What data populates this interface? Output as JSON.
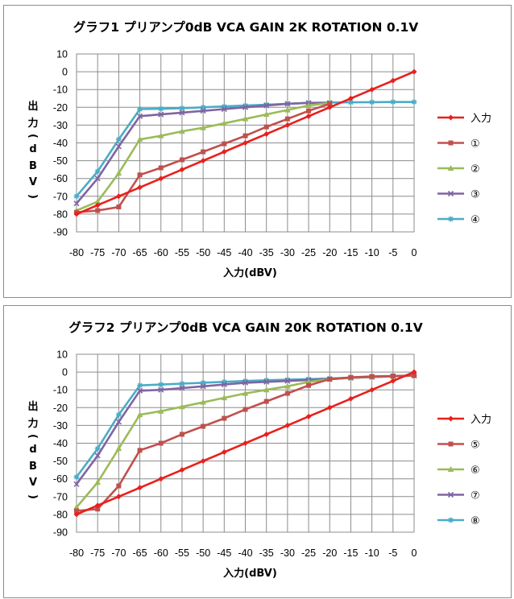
{
  "chart_data": [
    {
      "type": "line",
      "title": "グラフ1 プリアンプ0dB VCA GAIN 2K ROTATION 0.1V",
      "xlabel": "入力(dBV)",
      "ylabel": [
        "出",
        "力",
        "(",
        "d",
        "B",
        "V",
        ")"
      ],
      "categories": [
        "-80",
        "-75",
        "-70",
        "-65",
        "-60",
        "-55",
        "-50",
        "-45",
        "-40",
        "-35",
        "-30",
        "-25",
        "-20",
        "-15",
        "-10",
        "-5",
        "0"
      ],
      "ylim": [
        -90,
        10
      ],
      "yticks": [
        "10",
        "0",
        "-10",
        "-20",
        "-30",
        "-40",
        "-50",
        "-60",
        "-70",
        "-80",
        "-90"
      ],
      "grid": true,
      "legend_position": "right",
      "series": [
        {
          "name": "入力",
          "color": "#e8201d",
          "marker": "diamond",
          "values": [
            -80,
            -75,
            -70,
            -65,
            -60,
            -55,
            -50,
            -45,
            -40,
            -35,
            -30,
            -25,
            -20,
            -15,
            -10,
            -5,
            0
          ]
        },
        {
          "name": "①",
          "color": "#c0504d",
          "marker": "square",
          "values": [
            -79,
            -78,
            -76,
            -58,
            -54,
            -49.5,
            -45,
            -40.5,
            -36,
            -31,
            -26.5,
            -22,
            -18,
            null,
            null,
            null,
            null
          ]
        },
        {
          "name": "②",
          "color": "#9bbb59",
          "marker": "triangle",
          "values": [
            -78,
            -73,
            -57,
            -38,
            -36,
            -33.5,
            -31.5,
            -29,
            -26.5,
            -24,
            -21.5,
            -19,
            -17.5,
            null,
            null,
            null,
            null
          ]
        },
        {
          "name": "③",
          "color": "#8064a2",
          "marker": "cross",
          "values": [
            -74,
            -60,
            -42,
            -25,
            -24,
            -23,
            -22,
            -21,
            -20,
            -19,
            -18,
            -17.5,
            -17.5,
            null,
            null,
            null,
            null
          ]
        },
        {
          "name": "④",
          "color": "#4bacc6",
          "marker": "star",
          "values": [
            -70,
            -56,
            -38,
            -21,
            -20.8,
            -20.5,
            -20,
            -19.5,
            -19,
            -18.5,
            -18,
            -17.5,
            -17.3,
            -17.2,
            -17.1,
            -17,
            -17
          ]
        }
      ]
    },
    {
      "type": "line",
      "title": "グラフ2 プリアンプ0dB VCA GAIN 20K ROTATION 0.1V",
      "xlabel": "入力(dBV)",
      "ylabel": [
        "出",
        "力",
        "(",
        "d",
        "B",
        "V",
        ")"
      ],
      "categories": [
        "-80",
        "-75",
        "-70",
        "-65",
        "-60",
        "-55",
        "-50",
        "-45",
        "-40",
        "-35",
        "-30",
        "-25",
        "-20",
        "-15",
        "-10",
        "-5",
        "0"
      ],
      "ylim": [
        -90,
        10
      ],
      "yticks": [
        "10",
        "0",
        "-10",
        "-20",
        "-30",
        "-40",
        "-50",
        "-60",
        "-70",
        "-80",
        "-90"
      ],
      "grid": true,
      "legend_position": "right",
      "series": [
        {
          "name": "入力",
          "color": "#e8201d",
          "marker": "diamond",
          "values": [
            -80,
            -75,
            -70,
            -65,
            -60,
            -55,
            -50,
            -45,
            -40,
            -35,
            -30,
            -25,
            -20,
            -15,
            -10,
            -5,
            0
          ]
        },
        {
          "name": "⑤",
          "color": "#c0504d",
          "marker": "square",
          "values": [
            -78,
            -77,
            -64,
            -44,
            -40,
            -35,
            -30.5,
            -26,
            -21,
            -16.5,
            -12,
            -7.5,
            -4,
            -3,
            -2.5,
            -2.2,
            -2
          ]
        },
        {
          "name": "⑥",
          "color": "#9bbb59",
          "marker": "triangle",
          "values": [
            -76,
            -62,
            -43,
            -24,
            -22,
            -19.5,
            -17,
            -14.5,
            -12,
            -10,
            -8,
            -5.5,
            -4,
            -3.2,
            -2.6,
            -2.3,
            -2
          ]
        },
        {
          "name": "⑦",
          "color": "#8064a2",
          "marker": "cross",
          "values": [
            -63,
            -47,
            -28,
            -10.5,
            -10,
            -9,
            -8,
            -7,
            -6,
            -5.5,
            -5,
            -4.5,
            -4,
            -3.3,
            -2.8,
            -2.4,
            -2
          ]
        },
        {
          "name": "⑧",
          "color": "#4bacc6",
          "marker": "star",
          "values": [
            -59,
            -43,
            -24,
            -7.5,
            -7,
            -6.5,
            -6,
            -5.5,
            -5,
            -4.6,
            -4.3,
            -4,
            -3.6,
            -3.2,
            -2.8,
            -2.4,
            -2
          ]
        }
      ]
    }
  ]
}
